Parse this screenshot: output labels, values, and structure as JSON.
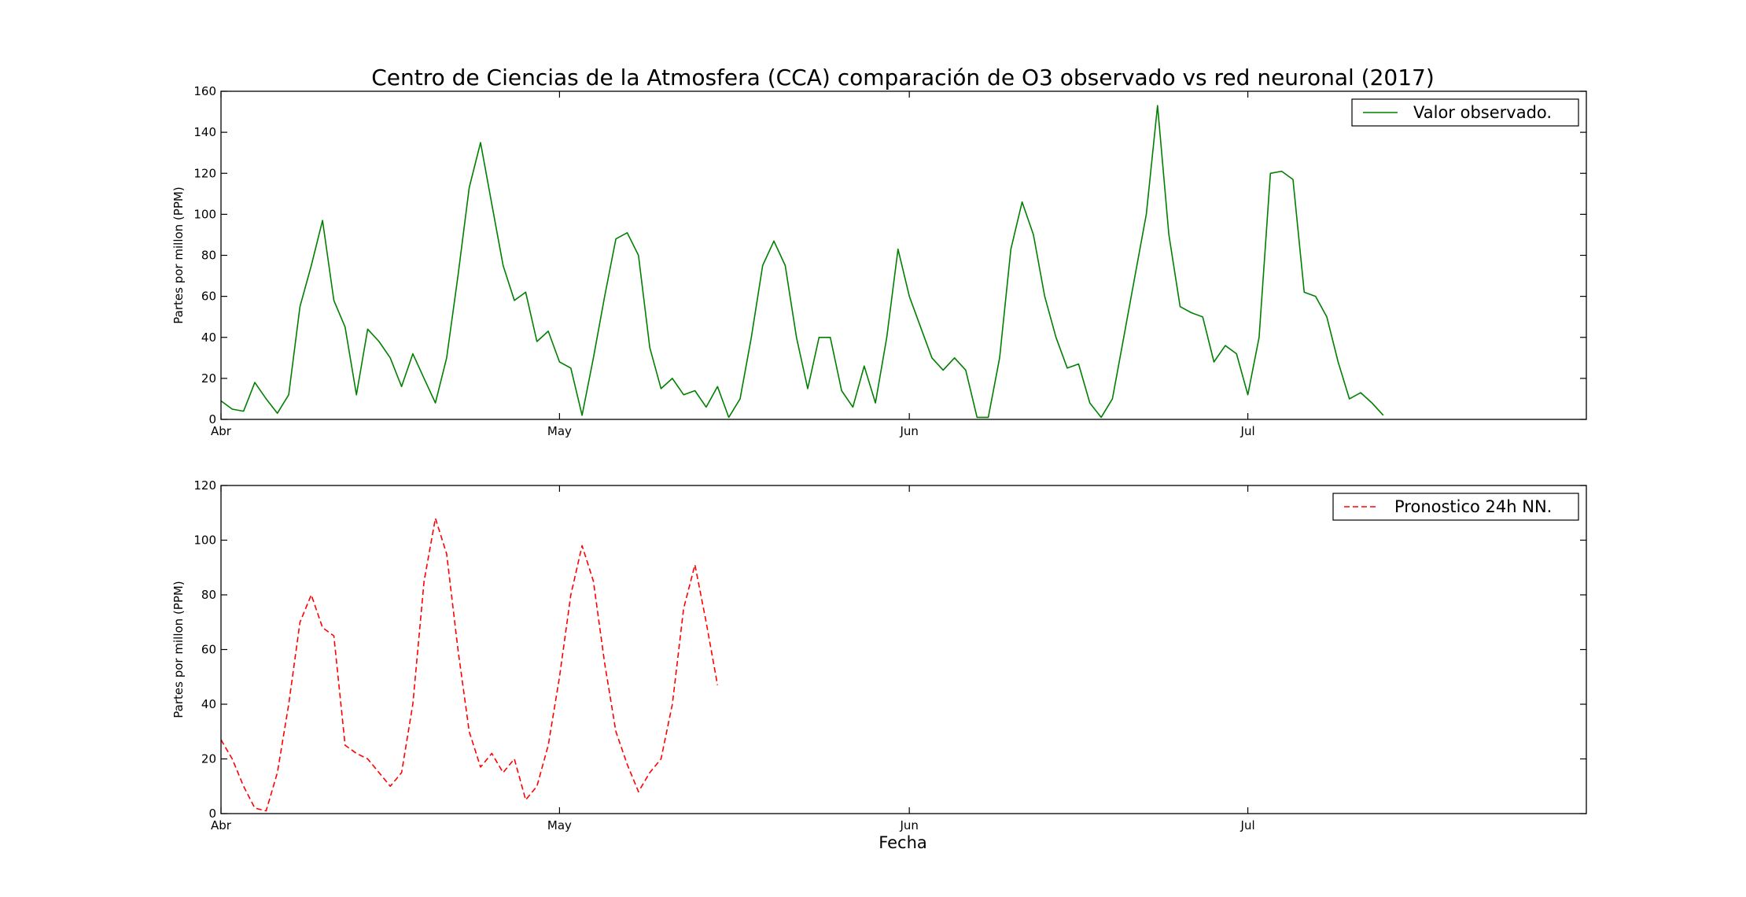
{
  "chart_data": {
    "type": "line",
    "title": "Centro de Ciencias de la Atmosfera (CCA) comparación de O3 observado vs red neuronal (2017)",
    "xlabel": "Fecha",
    "x_ticks": [
      {
        "date": "2017-04-01",
        "label": "Abr"
      },
      {
        "date": "2017-05-01",
        "label": "May"
      },
      {
        "date": "2017-06-01",
        "label": "Jun"
      },
      {
        "date": "2017-07-01",
        "label": "Jul"
      }
    ],
    "panels": [
      {
        "ylabel": "Partes por millon (PPM)",
        "ylim": [
          0,
          160
        ],
        "yticks": [
          0,
          20,
          40,
          60,
          80,
          100,
          120,
          140,
          160
        ],
        "legend_position": "top-right",
        "series": [
          {
            "name": "Valor observado.",
            "color": "#008000",
            "style": "solid",
            "points": [
              [
                "2017-04-01",
                9
              ],
              [
                "2017-04-02",
                5
              ],
              [
                "2017-04-03",
                4
              ],
              [
                "2017-04-04",
                18
              ],
              [
                "2017-04-05",
                10
              ],
              [
                "2017-04-06",
                3
              ],
              [
                "2017-04-07",
                12
              ],
              [
                "2017-04-08",
                55
              ],
              [
                "2017-04-09",
                75
              ],
              [
                "2017-04-10",
                97
              ],
              [
                "2017-04-11",
                58
              ],
              [
                "2017-04-12",
                45
              ],
              [
                "2017-04-13",
                12
              ],
              [
                "2017-04-14",
                44
              ],
              [
                "2017-04-15",
                38
              ],
              [
                "2017-04-16",
                30
              ],
              [
                "2017-04-17",
                16
              ],
              [
                "2017-04-18",
                32
              ],
              [
                "2017-04-19",
                20
              ],
              [
                "2017-04-20",
                8
              ],
              [
                "2017-04-21",
                30
              ],
              [
                "2017-04-22",
                70
              ],
              [
                "2017-04-23",
                113
              ],
              [
                "2017-04-24",
                135
              ],
              [
                "2017-04-25",
                105
              ],
              [
                "2017-04-26",
                75
              ],
              [
                "2017-04-27",
                58
              ],
              [
                "2017-04-28",
                62
              ],
              [
                "2017-04-29",
                38
              ],
              [
                "2017-04-30",
                43
              ],
              [
                "2017-05-01",
                28
              ],
              [
                "2017-05-02",
                25
              ],
              [
                "2017-05-03",
                2
              ],
              [
                "2017-05-04",
                30
              ],
              [
                "2017-05-05",
                60
              ],
              [
                "2017-05-06",
                88
              ],
              [
                "2017-05-07",
                91
              ],
              [
                "2017-05-08",
                80
              ],
              [
                "2017-05-09",
                35
              ],
              [
                "2017-05-10",
                15
              ],
              [
                "2017-05-11",
                20
              ],
              [
                "2017-05-12",
                12
              ],
              [
                "2017-05-13",
                14
              ],
              [
                "2017-05-14",
                6
              ],
              [
                "2017-05-15",
                16
              ],
              [
                "2017-05-16",
                1
              ],
              [
                "2017-05-17",
                10
              ],
              [
                "2017-05-18",
                40
              ],
              [
                "2017-05-19",
                75
              ],
              [
                "2017-05-20",
                87
              ],
              [
                "2017-05-21",
                75
              ],
              [
                "2017-05-22",
                40
              ],
              [
                "2017-05-23",
                15
              ],
              [
                "2017-05-24",
                40
              ],
              [
                "2017-05-25",
                40
              ],
              [
                "2017-05-26",
                14
              ],
              [
                "2017-05-27",
                6
              ],
              [
                "2017-05-28",
                26
              ],
              [
                "2017-05-29",
                8
              ],
              [
                "2017-05-30",
                40
              ],
              [
                "2017-05-31",
                83
              ],
              [
                "2017-06-01",
                60
              ],
              [
                "2017-06-02",
                45
              ],
              [
                "2017-06-03",
                30
              ],
              [
                "2017-06-04",
                24
              ],
              [
                "2017-06-05",
                30
              ],
              [
                "2017-06-06",
                24
              ],
              [
                "2017-06-07",
                1
              ],
              [
                "2017-06-08",
                1
              ],
              [
                "2017-06-09",
                30
              ],
              [
                "2017-06-10",
                83
              ],
              [
                "2017-06-11",
                106
              ],
              [
                "2017-06-12",
                90
              ],
              [
                "2017-06-13",
                60
              ],
              [
                "2017-06-14",
                40
              ],
              [
                "2017-06-15",
                25
              ],
              [
                "2017-06-16",
                27
              ],
              [
                "2017-06-17",
                8
              ],
              [
                "2017-06-18",
                1
              ],
              [
                "2017-06-19",
                10
              ],
              [
                "2017-06-20",
                40
              ],
              [
                "2017-06-21",
                70
              ],
              [
                "2017-06-22",
                100
              ],
              [
                "2017-06-23",
                153
              ],
              [
                "2017-06-24",
                90
              ],
              [
                "2017-06-25",
                55
              ],
              [
                "2017-06-26",
                52
              ],
              [
                "2017-06-27",
                50
              ],
              [
                "2017-06-28",
                28
              ],
              [
                "2017-06-29",
                36
              ],
              [
                "2017-06-30",
                32
              ],
              [
                "2017-07-01",
                12
              ],
              [
                "2017-07-02",
                40
              ],
              [
                "2017-07-03",
                120
              ],
              [
                "2017-07-04",
                121
              ],
              [
                "2017-07-05",
                117
              ],
              [
                "2017-07-06",
                62
              ],
              [
                "2017-07-07",
                60
              ],
              [
                "2017-07-08",
                50
              ],
              [
                "2017-07-09",
                28
              ],
              [
                "2017-07-10",
                10
              ],
              [
                "2017-07-11",
                13
              ],
              [
                "2017-07-12",
                8
              ],
              [
                "2017-07-13",
                2
              ]
            ]
          }
        ]
      },
      {
        "ylabel": "Partes por millon (PPM)",
        "ylim": [
          0,
          120
        ],
        "yticks": [
          0,
          20,
          40,
          60,
          80,
          100,
          120
        ],
        "legend_position": "top-right",
        "series": [
          {
            "name": "Pronostico 24h NN.",
            "color": "#ff0000",
            "style": "dashed",
            "points": [
              [
                "2017-04-01",
                27
              ],
              [
                "2017-04-02",
                20
              ],
              [
                "2017-04-03",
                10
              ],
              [
                "2017-04-04",
                2
              ],
              [
                "2017-04-05",
                1
              ],
              [
                "2017-04-06",
                15
              ],
              [
                "2017-04-07",
                40
              ],
              [
                "2017-04-08",
                70
              ],
              [
                "2017-04-09",
                80
              ],
              [
                "2017-04-10",
                68
              ],
              [
                "2017-04-11",
                65
              ],
              [
                "2017-04-12",
                25
              ],
              [
                "2017-04-13",
                22
              ],
              [
                "2017-04-14",
                20
              ],
              [
                "2017-04-15",
                15
              ],
              [
                "2017-04-16",
                10
              ],
              [
                "2017-04-17",
                15
              ],
              [
                "2017-04-18",
                40
              ],
              [
                "2017-04-19",
                85
              ],
              [
                "2017-04-20",
                108
              ],
              [
                "2017-04-21",
                95
              ],
              [
                "2017-04-22",
                60
              ],
              [
                "2017-04-23",
                30
              ],
              [
                "2017-04-24",
                17
              ],
              [
                "2017-04-25",
                22
              ],
              [
                "2017-04-26",
                15
              ],
              [
                "2017-04-27",
                20
              ],
              [
                "2017-04-28",
                5
              ],
              [
                "2017-04-29",
                10
              ],
              [
                "2017-04-30",
                25
              ],
              [
                "2017-05-01",
                50
              ],
              [
                "2017-05-02",
                80
              ],
              [
                "2017-05-03",
                98
              ],
              [
                "2017-05-04",
                85
              ],
              [
                "2017-05-05",
                55
              ],
              [
                "2017-05-06",
                30
              ],
              [
                "2017-05-07",
                18
              ],
              [
                "2017-05-08",
                8
              ],
              [
                "2017-05-09",
                15
              ],
              [
                "2017-05-10",
                20
              ],
              [
                "2017-05-11",
                40
              ],
              [
                "2017-05-12",
                75
              ],
              [
                "2017-05-13",
                91
              ],
              [
                "2017-05-14",
                70
              ],
              [
                "2017-05-15",
                47
              ]
            ]
          }
        ]
      }
    ]
  }
}
